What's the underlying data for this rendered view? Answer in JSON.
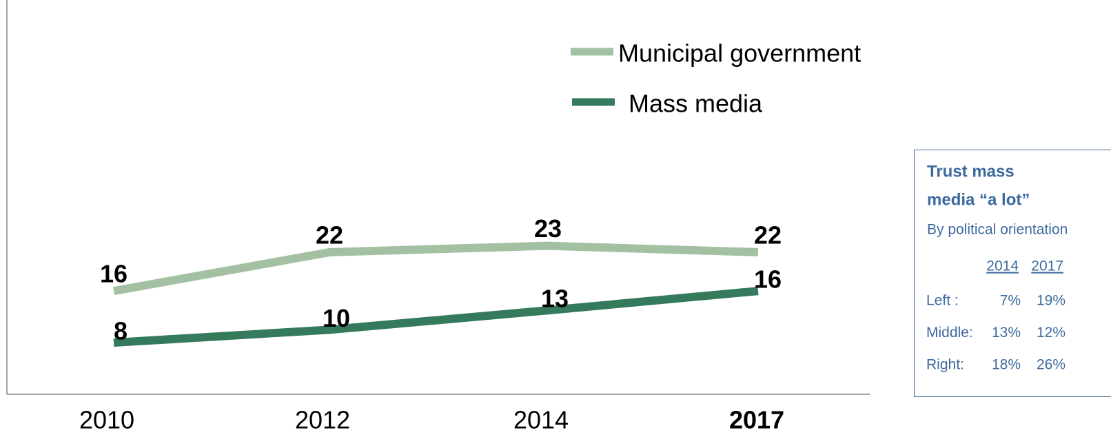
{
  "chart_data": {
    "type": "line",
    "categories": [
      "2010",
      "2012",
      "2014",
      "2017"
    ],
    "series": [
      {
        "name": "Municipal government",
        "color": "#a3c0a3",
        "values": [
          16,
          22,
          23,
          22
        ]
      },
      {
        "name": "Mass media",
        "color": "#357a5d",
        "values": [
          8,
          10,
          13,
          16
        ]
      }
    ],
    "ylim": [
      0,
      60
    ]
  },
  "inset": {
    "title_lines": [
      "Trust  mass",
      "media “a lot”"
    ],
    "subtitle": "By political orientation",
    "table": {
      "header": [
        "2014",
        "2017"
      ],
      "rows": [
        [
          "Left :",
          "7%",
          "19%"
        ],
        [
          "Middle:",
          "13%",
          "12%"
        ],
        [
          "Right:",
          "18%",
          "26%"
        ]
      ]
    }
  }
}
